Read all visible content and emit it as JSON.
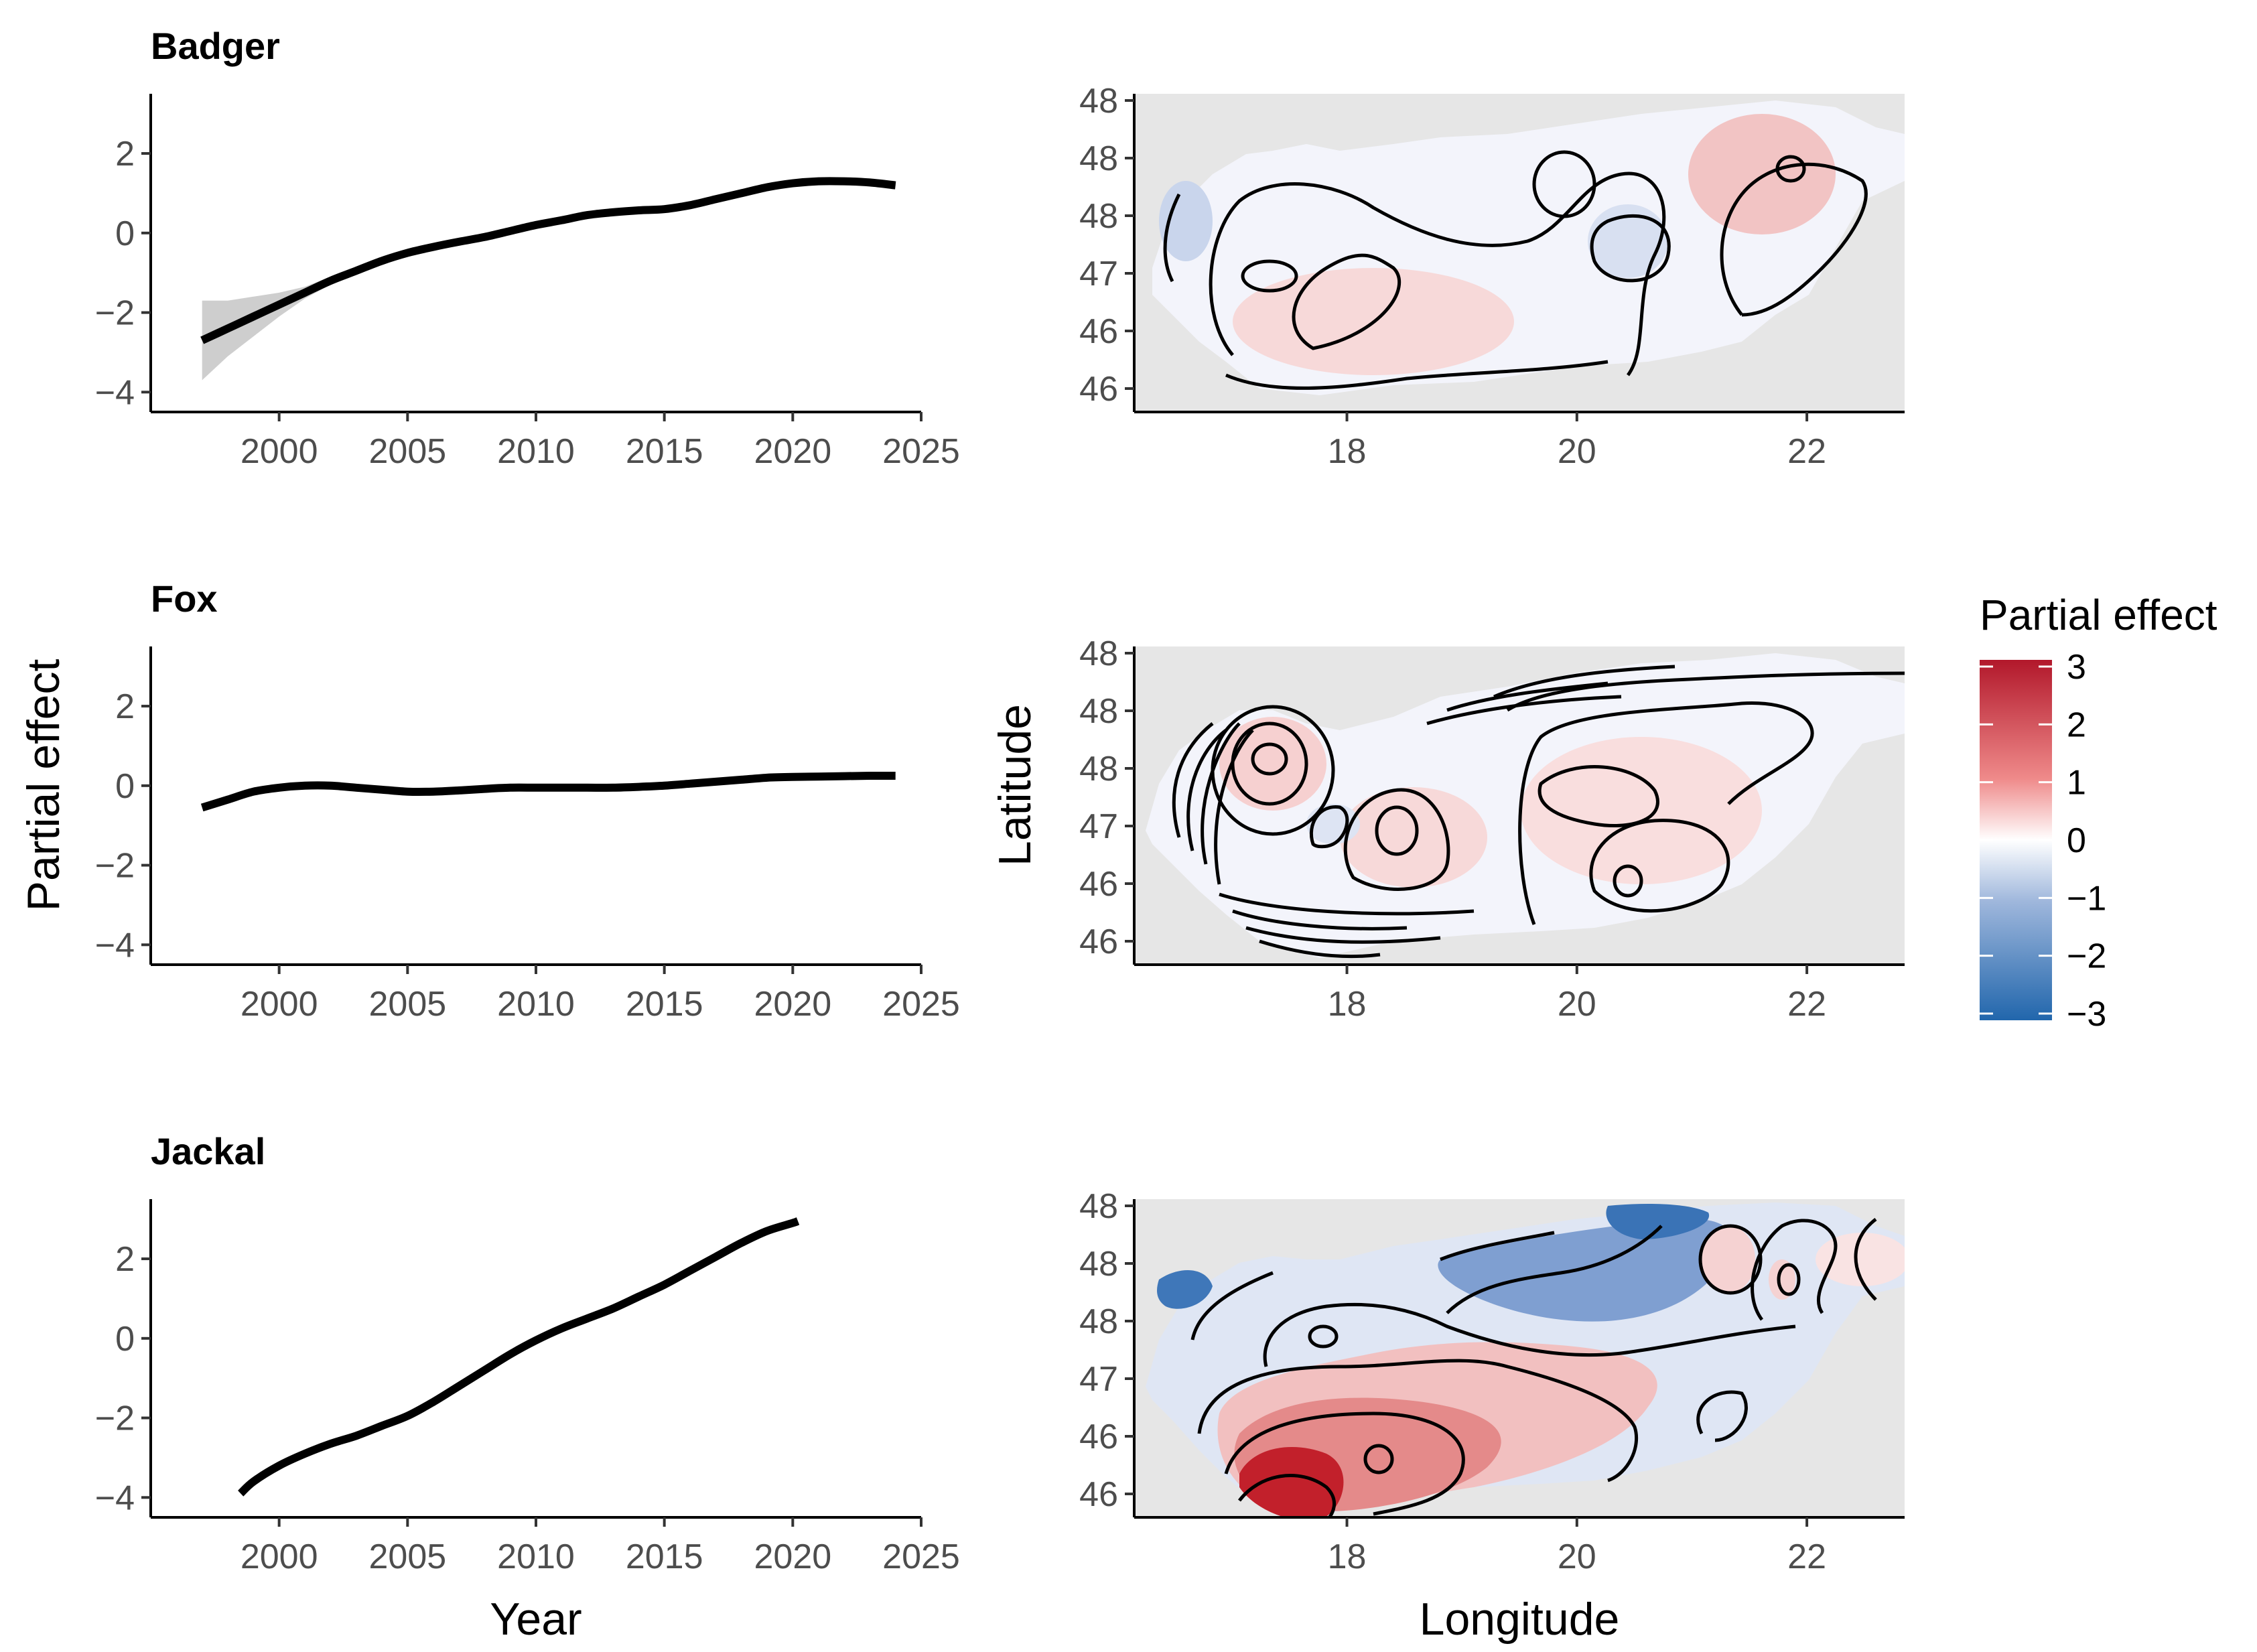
{
  "chart_data": [
    {
      "type": "line",
      "panel": "left-top",
      "title": "Badger",
      "xlabel": "",
      "ylabel": "",
      "xlim": [
        1995,
        2025
      ],
      "ylim": [
        -4.5,
        3.5
      ],
      "x_ticks": [
        "2000",
        "2005",
        "2010",
        "2015",
        "2020",
        "2025"
      ],
      "y_ticks": [
        "2",
        "0",
        "−2",
        "−4"
      ],
      "x": [
        1997,
        1998,
        1999,
        2000,
        2001,
        2002,
        2003,
        2004,
        2005,
        2006,
        2007,
        2008,
        2009,
        2010,
        2011,
        2012,
        2013,
        2014,
        2015,
        2016,
        2017,
        2018,
        2019,
        2020,
        2021,
        2022,
        2023,
        2024
      ],
      "y": [
        -2.7,
        -2.4,
        -2.1,
        -1.8,
        -1.5,
        -1.2,
        -0.95,
        -0.7,
        -0.5,
        -0.35,
        -0.22,
        -0.1,
        0.05,
        0.2,
        0.32,
        0.45,
        0.52,
        0.57,
        0.6,
        0.7,
        0.85,
        1.0,
        1.15,
        1.25,
        1.3,
        1.3,
        1.27,
        1.2
      ],
      "ci_upper": [
        -1.7,
        -1.7,
        -1.6,
        -1.5,
        -1.35,
        -1.1,
        -0.9,
        -0.67,
        -0.48,
        -0.33,
        -0.2,
        -0.08,
        0.07,
        0.22,
        0.34,
        0.47,
        0.54,
        0.59,
        0.62,
        0.72,
        0.87,
        1.02,
        1.17,
        1.27,
        1.32,
        1.32,
        1.29,
        1.22
      ],
      "ci_lower": [
        -3.7,
        -3.1,
        -2.6,
        -2.1,
        -1.65,
        -1.3,
        -1.0,
        -0.73,
        -0.52,
        -0.37,
        -0.24,
        -0.12,
        0.03,
        0.18,
        0.3,
        0.43,
        0.5,
        0.55,
        0.58,
        0.68,
        0.83,
        0.98,
        1.13,
        1.23,
        1.28,
        1.28,
        1.25,
        1.18
      ]
    },
    {
      "type": "heatmap",
      "panel": "right-top",
      "title": "Badger",
      "xlabel": "",
      "ylabel": "",
      "x_ticks": [
        "18",
        "20",
        "22"
      ],
      "y_ticks": [
        "48",
        "48",
        "48",
        "47",
        "46",
        "46"
      ],
      "description": "smoothed partial effect surface, values roughly -1 to 1"
    },
    {
      "type": "line",
      "panel": "left-middle",
      "title": "Fox",
      "xlabel": "",
      "ylabel": "Partial effect",
      "xlim": [
        1995,
        2025
      ],
      "ylim": [
        -4.5,
        3.5
      ],
      "x_ticks": [
        "2000",
        "2005",
        "2010",
        "2015",
        "2020",
        "2025"
      ],
      "y_ticks": [
        "2",
        "0",
        "−2",
        "−4"
      ],
      "x": [
        1997,
        1998,
        1999,
        2000,
        2001,
        2002,
        2003,
        2004,
        2005,
        2006,
        2007,
        2008,
        2009,
        2010,
        2011,
        2012,
        2013,
        2014,
        2015,
        2016,
        2017,
        2018,
        2019,
        2020,
        2021,
        2022,
        2023,
        2024
      ],
      "y": [
        -0.55,
        -0.35,
        -0.15,
        -0.05,
        0.0,
        0.0,
        -0.05,
        -0.1,
        -0.15,
        -0.15,
        -0.12,
        -0.08,
        -0.05,
        -0.05,
        -0.05,
        -0.05,
        -0.05,
        -0.03,
        0.0,
        0.05,
        0.1,
        0.15,
        0.2,
        0.22,
        0.23,
        0.24,
        0.25,
        0.25
      ]
    },
    {
      "type": "heatmap",
      "panel": "right-middle",
      "title": "Fox",
      "xlabel": "",
      "ylabel": "Latitude",
      "x_ticks": [
        "18",
        "20",
        "22"
      ],
      "y_ticks": [
        "48",
        "48",
        "48",
        "47",
        "46",
        "46"
      ],
      "description": "smoothed partial effect surface, values roughly -1 to 1"
    },
    {
      "type": "line",
      "panel": "left-bottom",
      "title": "Jackal",
      "xlabel": "Year",
      "ylabel": "",
      "xlim": [
        1995,
        2025
      ],
      "ylim": [
        -4.5,
        3.5
      ],
      "x_ticks": [
        "2000",
        "2005",
        "2010",
        "2015",
        "2020",
        "2025"
      ],
      "y_ticks": [
        "2",
        "0",
        "−2",
        "−4"
      ],
      "x": [
        1998.5,
        1999,
        2000,
        2001,
        2002,
        2003,
        2004,
        2005,
        2006,
        2007,
        2008,
        2009,
        2010,
        2011,
        2012,
        2013,
        2014,
        2015,
        2016,
        2017,
        2018,
        2019,
        2020,
        2020.2
      ],
      "y": [
        -3.9,
        -3.6,
        -3.2,
        -2.9,
        -2.65,
        -2.45,
        -2.2,
        -1.95,
        -1.6,
        -1.2,
        -0.8,
        -0.4,
        -0.05,
        0.25,
        0.5,
        0.75,
        1.05,
        1.35,
        1.7,
        2.05,
        2.4,
        2.7,
        2.9,
        2.95
      ]
    },
    {
      "type": "heatmap",
      "panel": "right-bottom",
      "title": "Jackal",
      "xlabel": "Longitude",
      "ylabel": "",
      "x_ticks": [
        "18",
        "20",
        "22"
      ],
      "y_ticks": [
        "48",
        "48",
        "48",
        "47",
        "46",
        "46"
      ],
      "description": "smoothed partial effect surface, values roughly -3 to 3"
    }
  ],
  "legend": {
    "title": "Partial effect",
    "ticks": [
      "3",
      "2",
      "1",
      "0",
      "−1",
      "−2",
      "−3"
    ],
    "high_color": "#b2182b",
    "mid_color": "#ffffff",
    "low_color": "#2166ac"
  },
  "colors": {
    "line": "#000000",
    "ribbon": "#bdbdbd",
    "panel_bg": "#e6e6e6",
    "axis": "#000000"
  }
}
